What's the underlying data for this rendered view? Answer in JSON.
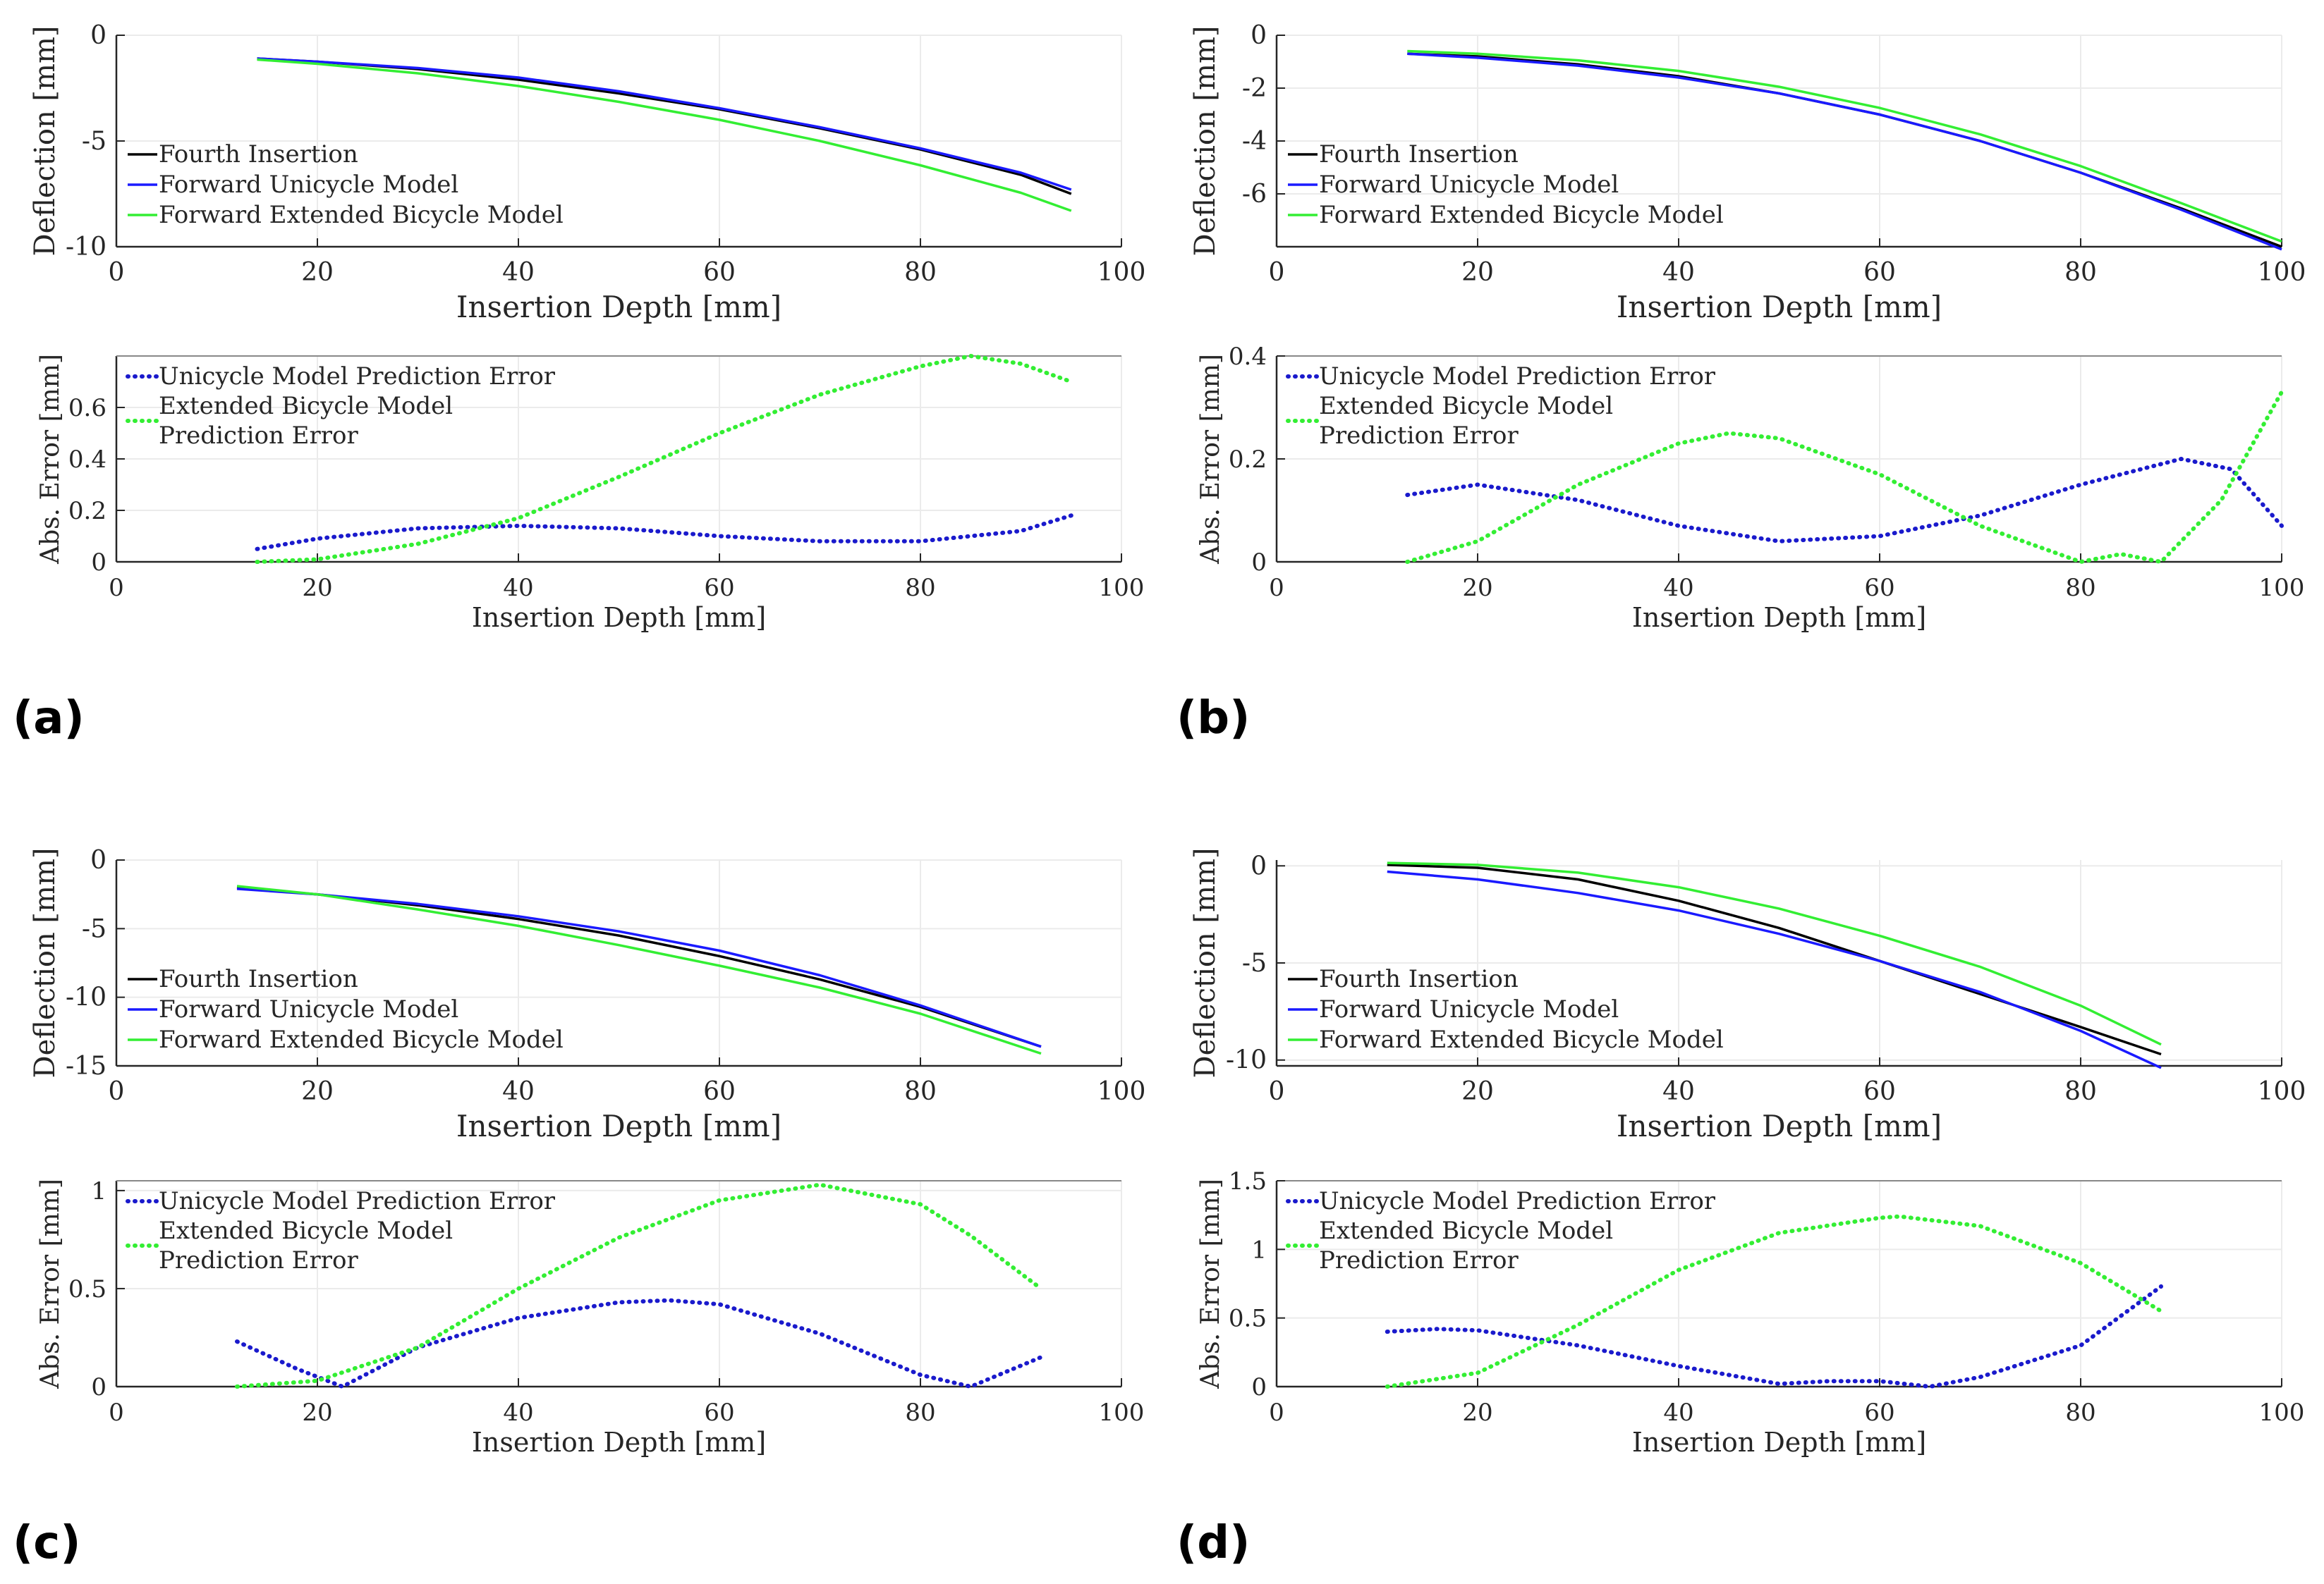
{
  "panels": [
    {
      "label": "(a)",
      "top": {
        "xlim": [
          0,
          100
        ],
        "ylim": [
          -10,
          0
        ],
        "yticks": [
          0,
          -5,
          -10
        ],
        "series": [
          {
            "name": "Fourth Insertion",
            "color": "#000000",
            "x": [
              14,
              20,
              30,
              40,
              50,
              60,
              70,
              80,
              90,
              95
            ],
            "y": [
              -1.1,
              -1.25,
              -1.6,
              -2.1,
              -2.75,
              -3.5,
              -4.4,
              -5.4,
              -6.6,
              -7.5
            ]
          },
          {
            "name": "Forward Unicycle Model",
            "color": "#1a1aff",
            "x": [
              14,
              20,
              30,
              40,
              50,
              60,
              70,
              80,
              90,
              95
            ],
            "y": [
              -1.1,
              -1.25,
              -1.55,
              -2.0,
              -2.65,
              -3.45,
              -4.35,
              -5.35,
              -6.5,
              -7.3
            ]
          },
          {
            "name": "Forward Extended Bicycle Model",
            "color": "#33ee33",
            "x": [
              14,
              20,
              30,
              40,
              50,
              60,
              70,
              80,
              90,
              95
            ],
            "y": [
              -1.15,
              -1.35,
              -1.8,
              -2.4,
              -3.15,
              -4.0,
              -5.0,
              -6.15,
              -7.45,
              -8.3
            ]
          }
        ]
      },
      "bottom": {
        "xlim": [
          0,
          100
        ],
        "ylim": [
          0,
          0.8
        ],
        "yticks": [
          0,
          0.2,
          0.4,
          0.6
        ],
        "series": [
          {
            "name": "Unicycle Model Prediction Error",
            "color": "#1a1acc",
            "x": [
              14,
              20,
              30,
              40,
              50,
              60,
              70,
              80,
              90,
              95
            ],
            "y": [
              0.05,
              0.09,
              0.13,
              0.14,
              0.13,
              0.1,
              0.08,
              0.08,
              0.12,
              0.18
            ]
          },
          {
            "name": "Extended Bicycle Model Prediction Error",
            "color": "#33ee33",
            "x": [
              14,
              20,
              30,
              40,
              50,
              60,
              70,
              80,
              85,
              90,
              95
            ],
            "y": [
              0.0,
              0.01,
              0.07,
              0.17,
              0.33,
              0.5,
              0.65,
              0.76,
              0.8,
              0.77,
              0.7
            ]
          }
        ]
      }
    },
    {
      "label": "(b)",
      "top": {
        "xlim": [
          0,
          100
        ],
        "ylim": [
          -8,
          0
        ],
        "yticks": [
          0,
          -2,
          -4,
          -6
        ],
        "series": [
          {
            "name": "Fourth Insertion",
            "color": "#000000",
            "x": [
              13,
              20,
              30,
              40,
              50,
              60,
              70,
              80,
              90,
              100
            ],
            "y": [
              -0.7,
              -0.8,
              -1.1,
              -1.55,
              -2.2,
              -3.0,
              -4.0,
              -5.2,
              -6.55,
              -8.0
            ]
          },
          {
            "name": "Forward Unicycle Model",
            "color": "#1a1aff",
            "x": [
              13,
              20,
              30,
              40,
              50,
              60,
              70,
              80,
              90,
              100
            ],
            "y": [
              -0.7,
              -0.85,
              -1.15,
              -1.6,
              -2.2,
              -3.0,
              -4.0,
              -5.2,
              -6.6,
              -8.1
            ]
          },
          {
            "name": "Forward Extended Bicycle Model",
            "color": "#33ee33",
            "x": [
              13,
              20,
              30,
              40,
              50,
              60,
              70,
              80,
              90,
              100
            ],
            "y": [
              -0.6,
              -0.7,
              -0.95,
              -1.35,
              -1.95,
              -2.75,
              -3.75,
              -4.95,
              -6.35,
              -7.8
            ]
          }
        ]
      },
      "bottom": {
        "xlim": [
          0,
          100
        ],
        "ylim": [
          0,
          0.4
        ],
        "yticks": [
          0,
          0.2,
          0.4
        ],
        "series": [
          {
            "name": "Unicycle Model Prediction Error",
            "color": "#1a1acc",
            "x": [
              13,
              20,
              30,
              40,
              50,
              60,
              70,
              80,
              90,
              95,
              100
            ],
            "y": [
              0.13,
              0.15,
              0.12,
              0.07,
              0.04,
              0.05,
              0.09,
              0.15,
              0.2,
              0.18,
              0.07
            ]
          },
          {
            "name": "Extended Bicycle Model Prediction Error",
            "color": "#33ee33",
            "x": [
              13,
              20,
              30,
              40,
              45,
              50,
              60,
              70,
              80,
              84,
              88,
              94,
              100
            ],
            "y": [
              0.0,
              0.04,
              0.15,
              0.23,
              0.25,
              0.24,
              0.17,
              0.07,
              0.0,
              0.015,
              0.0,
              0.12,
              0.33
            ]
          }
        ]
      }
    },
    {
      "label": "(c)",
      "top": {
        "xlim": [
          0,
          100
        ],
        "ylim": [
          -15,
          0
        ],
        "yticks": [
          0,
          -5,
          -10,
          -15
        ],
        "series": [
          {
            "name": "Fourth Insertion",
            "color": "#000000",
            "x": [
              12,
              20,
              30,
              40,
              50,
              60,
              70,
              80,
              92
            ],
            "y": [
              -2.0,
              -2.5,
              -3.3,
              -4.3,
              -5.5,
              -7.0,
              -8.7,
              -10.7,
              -13.6
            ]
          },
          {
            "name": "Forward Unicycle Model",
            "color": "#1a1aff",
            "x": [
              12,
              20,
              30,
              40,
              50,
              60,
              70,
              80,
              92
            ],
            "y": [
              -2.1,
              -2.5,
              -3.2,
              -4.1,
              -5.2,
              -6.6,
              -8.4,
              -10.6,
              -13.6
            ]
          },
          {
            "name": "Forward Extended Bicycle Model",
            "color": "#33ee33",
            "x": [
              12,
              20,
              30,
              40,
              50,
              60,
              70,
              80,
              92
            ],
            "y": [
              -1.9,
              -2.5,
              -3.6,
              -4.8,
              -6.2,
              -7.7,
              -9.3,
              -11.2,
              -14.1
            ]
          }
        ]
      },
      "bottom": {
        "xlim": [
          0,
          100
        ],
        "ylim": [
          0,
          1.05
        ],
        "yticks": [
          0,
          0.5,
          1
        ],
        "series": [
          {
            "name": "Unicycle Model Prediction Error",
            "color": "#1a1acc",
            "x": [
              12,
              18,
              22.5,
              30,
              40,
              50,
              55,
              60,
              70,
              80,
              85,
              92
            ],
            "y": [
              0.23,
              0.09,
              0.0,
              0.2,
              0.35,
              0.43,
              0.44,
              0.42,
              0.27,
              0.06,
              0.0,
              0.15
            ]
          },
          {
            "name": "Extended Bicycle Model Prediction Error",
            "color": "#33ee33",
            "x": [
              12,
              20,
              30,
              40,
              50,
              60,
              70,
              80,
              85,
              92
            ],
            "y": [
              0.0,
              0.03,
              0.2,
              0.5,
              0.76,
              0.95,
              1.03,
              0.93,
              0.77,
              0.5
            ]
          }
        ]
      }
    },
    {
      "label": "(d)",
      "top": {
        "xlim": [
          0,
          100
        ],
        "ylim": [
          -10.3,
          0.3
        ],
        "yticks": [
          0,
          -5,
          -10
        ],
        "series": [
          {
            "name": "Fourth Insertion",
            "color": "#000000",
            "x": [
              11,
              20,
              30,
              40,
              50,
              60,
              70,
              80,
              88
            ],
            "y": [
              0.05,
              -0.1,
              -0.7,
              -1.8,
              -3.2,
              -4.9,
              -6.6,
              -8.3,
              -9.7
            ]
          },
          {
            "name": "Forward Unicycle Model",
            "color": "#1a1aff",
            "x": [
              11,
              20,
              30,
              40,
              50,
              60,
              70,
              80,
              88
            ],
            "y": [
              -0.3,
              -0.7,
              -1.4,
              -2.3,
              -3.5,
              -4.9,
              -6.5,
              -8.5,
              -10.4
            ]
          },
          {
            "name": "Forward Extended Bicycle Model",
            "color": "#33ee33",
            "x": [
              11,
              20,
              30,
              40,
              50,
              60,
              70,
              80,
              88
            ],
            "y": [
              0.15,
              0.05,
              -0.35,
              -1.1,
              -2.2,
              -3.6,
              -5.2,
              -7.2,
              -9.2
            ]
          }
        ]
      },
      "bottom": {
        "xlim": [
          0,
          100
        ],
        "ylim": [
          0,
          1.5
        ],
        "yticks": [
          0,
          0.5,
          1,
          1.5
        ],
        "series": [
          {
            "name": "Unicycle Model Prediction Error",
            "color": "#1a1acc",
            "x": [
              11,
              16,
              20,
              30,
              40,
              50,
              55,
              60,
              65,
              70,
              80,
              88
            ],
            "y": [
              0.4,
              0.42,
              0.41,
              0.3,
              0.15,
              0.02,
              0.04,
              0.04,
              0.0,
              0.07,
              0.3,
              0.73
            ]
          },
          {
            "name": "Extended Bicycle Model Prediction Error",
            "color": "#33ee33",
            "x": [
              11,
              20,
              30,
              40,
              50,
              60,
              62,
              70,
              80,
              88
            ],
            "y": [
              0.0,
              0.1,
              0.45,
              0.85,
              1.12,
              1.23,
              1.24,
              1.17,
              0.9,
              0.55
            ]
          }
        ]
      }
    }
  ],
  "labels": {
    "x_axis": "Insertion Depth [mm]",
    "y_top": "Deflection [mm]",
    "y_bottom": "Abs. Error [mm]",
    "legend_top": [
      "Fourth Insertion",
      "Forward Unicycle Model",
      "Forward Extended Bicycle Model"
    ],
    "legend_bottom_1": "Unicycle Model Prediction Error",
    "legend_bottom_2a": "Extended Bicycle Model",
    "legend_bottom_2b": "Prediction Error"
  },
  "xticks": [
    0,
    20,
    40,
    60,
    80,
    100
  ],
  "colors": {
    "black": "#000000",
    "blue": "#1a1aff",
    "blue_dotted": "#1a1acc",
    "green": "#33ee33",
    "grid": "#ebebeb",
    "axis": "#262626"
  }
}
